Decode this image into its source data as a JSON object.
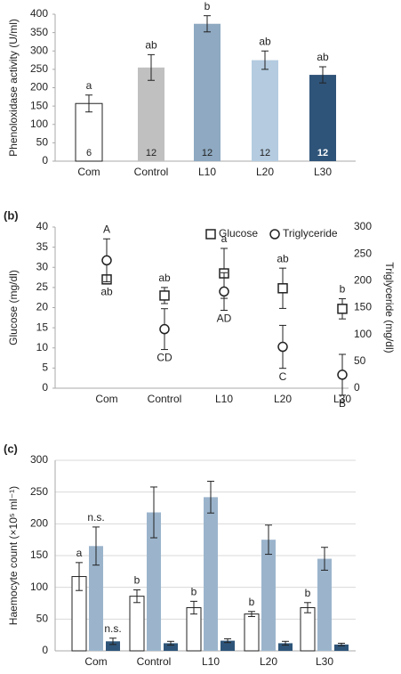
{
  "chart_data": [
    {
      "type": "bar",
      "ylabel": "Phenoloxidase activity (U/ml)",
      "categories": [
        "Com",
        "Control",
        "L10",
        "L20",
        "L30"
      ],
      "values": [
        157,
        255,
        374,
        275,
        235
      ],
      "errors": [
        23,
        35,
        22,
        25,
        22
      ],
      "colors": [
        "#ffffff",
        "#c0c0c0",
        "#8ea9c1",
        "#b4cbe0",
        "#2f5479"
      ],
      "letters": [
        "a",
        "ab",
        "b",
        "ab",
        "ab"
      ],
      "n": [
        6,
        12,
        12,
        12,
        12
      ],
      "ylim": [
        0,
        400
      ],
      "yticks": [
        0,
        50,
        100,
        150,
        200,
        250,
        300,
        350,
        400
      ],
      "grid": false
    },
    {
      "type": "scatter",
      "panel": "(b)",
      "ylabel": "Glucose (mg/dl)",
      "y2label": "Triglyceride (mg/dl)",
      "categories": [
        "Com",
        "Control",
        "L10",
        "L20",
        "L30"
      ],
      "series": [
        {
          "name": "Glucose",
          "marker": "square",
          "values": [
            27,
            23,
            28.5,
            24.8,
            19.7
          ],
          "errors": [
            1,
            2,
            6.2,
            5,
            2.5
          ],
          "letters": [
            "ab",
            "ab",
            "a",
            "ab",
            "b"
          ]
        },
        {
          "name": "Triglyceride",
          "marker": "circle",
          "axis": "y2",
          "values": [
            238,
            110,
            180,
            77,
            25
          ],
          "errors": [
            40,
            38,
            35,
            40,
            38
          ],
          "letters": [
            "A",
            "CD",
            "AD",
            "C",
            "B"
          ]
        }
      ],
      "ylim": [
        0,
        40
      ],
      "yticks": [
        0,
        5,
        10,
        15,
        20,
        25,
        30,
        35,
        40
      ],
      "y2lim": [
        0,
        300
      ],
      "y2ticks": [
        0,
        50,
        100,
        150,
        200,
        250,
        300
      ],
      "legend": "upper right",
      "grid": false
    },
    {
      "type": "bar",
      "panel": "(c)",
      "ylabel": "Haemocyte count (×10⁵ ml⁻¹)",
      "categories": [
        "Com",
        "Control",
        "L10",
        "L20",
        "L30"
      ],
      "series": [
        {
          "color": "#ffffff",
          "values": [
            117,
            86,
            68,
            58,
            68
          ],
          "errors": [
            22,
            10,
            10,
            4,
            8
          ],
          "letters": [
            "a",
            "b",
            "b",
            "b",
            "b"
          ]
        },
        {
          "color": "#9bb4cc",
          "values": [
            165,
            218,
            242,
            175,
            145
          ],
          "errors": [
            30,
            40,
            25,
            23,
            18
          ],
          "letters": [
            "n.s.",
            null,
            null,
            null,
            null
          ]
        },
        {
          "color": "#2e5579",
          "values": [
            15,
            12,
            16,
            12,
            10
          ],
          "errors": [
            5,
            3,
            3,
            3,
            2
          ],
          "letters": [
            "n.s.",
            null,
            null,
            null,
            null
          ]
        }
      ],
      "ylim": [
        0,
        300
      ],
      "yticks": [
        0,
        50,
        100,
        150,
        200,
        250,
        300
      ],
      "grid": true
    }
  ]
}
